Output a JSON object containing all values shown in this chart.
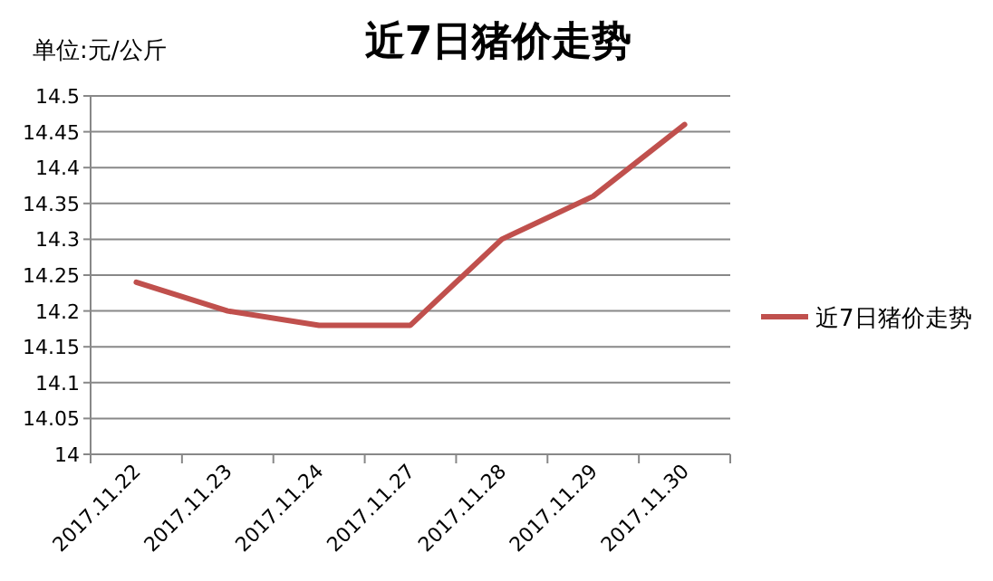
{
  "chart_data": {
    "type": "line",
    "title": "近7日猪价走势",
    "ylabel": "单位:元/公斤",
    "categories": [
      "2017.11.22",
      "2017.11.23",
      "2017.11.24",
      "2017.11.27",
      "2017.11.28",
      "2017.11.29",
      "2017.11.30"
    ],
    "series": [
      {
        "name": "近7日猪价走势",
        "color": "#c0504d",
        "values": [
          14.24,
          14.2,
          14.18,
          14.18,
          14.3,
          14.36,
          14.46
        ]
      }
    ],
    "ylim": [
      14,
      14.5
    ],
    "yticks": [
      14,
      14.05,
      14.1,
      14.15,
      14.2,
      14.25,
      14.3,
      14.35,
      14.4,
      14.45,
      14.5
    ],
    "grid": "y",
    "legend": "right"
  }
}
